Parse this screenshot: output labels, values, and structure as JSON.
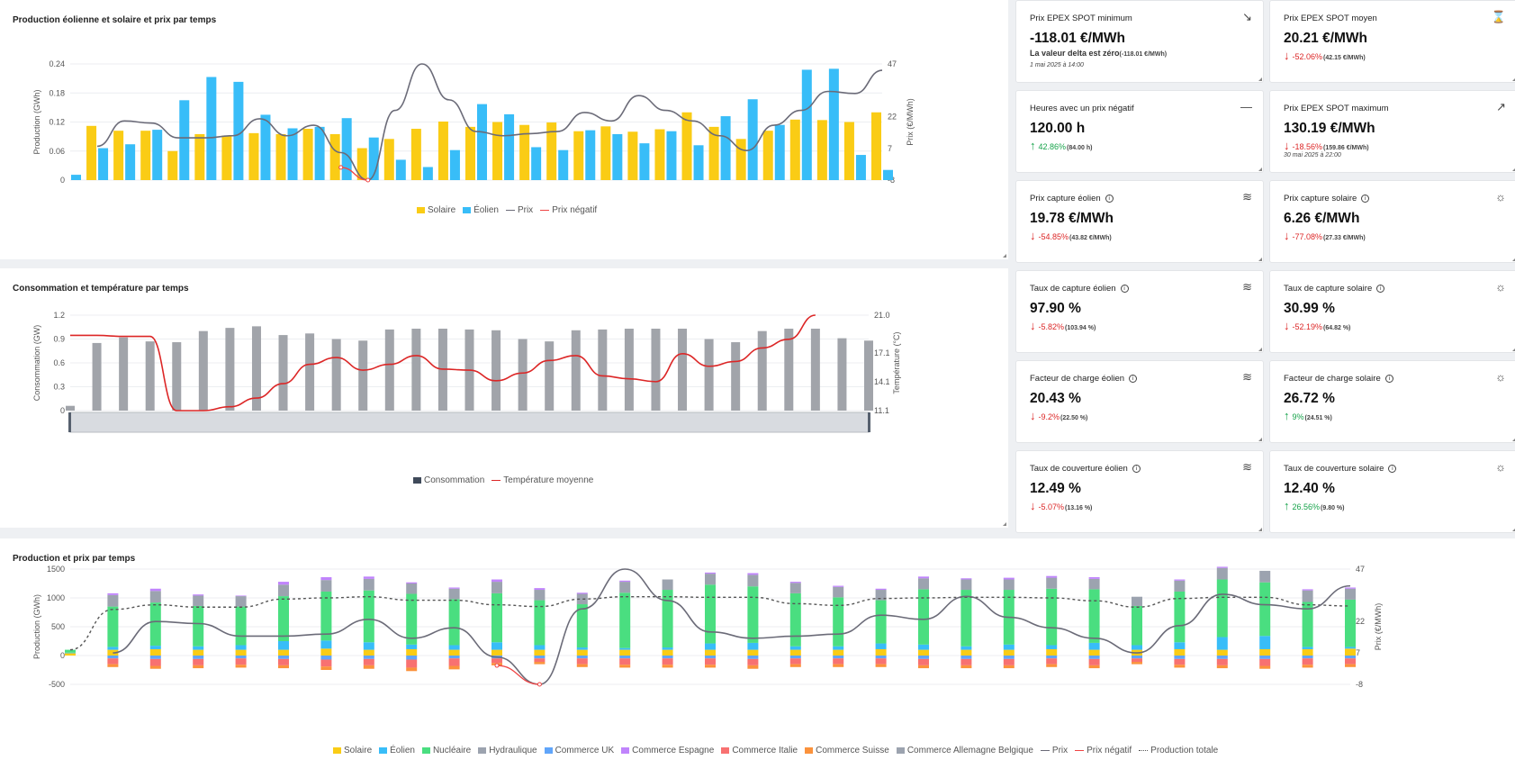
{
  "panels": {
    "wind_solar": {
      "title": "Production éolienne et solaire et prix par temps",
      "legend": [
        "Solaire",
        "Éolien",
        "Prix",
        "Prix négatif"
      ]
    },
    "consumption": {
      "title": "Consommation et température par temps",
      "legend": [
        "Consommation",
        "Température moyenne"
      ]
    },
    "production": {
      "title": "Production et prix par temps",
      "legend": [
        "Solaire",
        "Éolien",
        "Nucléaire",
        "Hydraulique",
        "Commerce UK",
        "Commerce Espagne",
        "Commerce Italie",
        "Commerce Suisse",
        "Commerce Allemagne Belgique",
        "Prix",
        "Prix négatif",
        "Production totale"
      ]
    }
  },
  "colors": {
    "solar": "#facc15",
    "wind": "#38bdf8",
    "nuclear": "#4ade80",
    "hydro": "#9ca3af",
    "uk": "#60a5fa",
    "spain": "#c084fc",
    "italy": "#f87171",
    "swiss": "#fb923c",
    "germany": "#9ca3af",
    "price": "#6b6b78",
    "negative": "#ef4444",
    "temperature": "#dc2626",
    "consumption_bar": "#a1a4aa"
  },
  "kpis": [
    {
      "title": "Prix EPEX SPOT minimum",
      "icon": "trend-down-right-icon",
      "glyph": "↘",
      "value": "-118.01 €/MWh",
      "sub": "La valeur delta est zéro",
      "sub_prev": "(-118.01 €/MWh)",
      "date": "1 mai 2025 à 14:00"
    },
    {
      "title": "Prix EPEX SPOT moyen",
      "icon": "hourglass-icon",
      "glyph": "⌛",
      "value": "20.21 €/MWh",
      "dir": "neg",
      "pct": "-52.06%",
      "prev": "(42.15 €/MWh)"
    },
    {
      "title": "Heures avec un prix négatif",
      "icon": "minus-icon",
      "glyph": "—",
      "value": "120.00 h",
      "dir": "pos",
      "pct": "42.86%",
      "prev": "(84.00 h)"
    },
    {
      "title": "Prix EPEX SPOT maximum",
      "icon": "trend-up-right-icon",
      "glyph": "↗",
      "value": "130.19 €/MWh",
      "dir": "neg",
      "pct": "-18.56%",
      "prev": "(159.86 €/MWh)",
      "date": "30 mai 2025 à 22:00"
    },
    {
      "title": "Prix capture éolien",
      "info": true,
      "icon": "wind-icon",
      "glyph": "≋",
      "value": "19.78 €/MWh",
      "dir": "neg",
      "pct": "-54.85%",
      "prev": "(43.82 €/MWh)"
    },
    {
      "title": "Prix capture solaire",
      "info": true,
      "icon": "sun-icon",
      "glyph": "☼",
      "value": "6.26 €/MWh",
      "dir": "neg",
      "pct": "-77.08%",
      "prev": "(27.33 €/MWh)"
    },
    {
      "title": "Taux de capture éolien",
      "info": true,
      "icon": "wind-icon",
      "glyph": "≋",
      "value": "97.90 %",
      "dir": "neg",
      "pct": "-5.82%",
      "prev": "(103.94 %)"
    },
    {
      "title": "Taux de capture solaire",
      "info": true,
      "icon": "sun-icon",
      "glyph": "☼",
      "value": "30.99 %",
      "dir": "neg",
      "pct": "-52.19%",
      "prev": "(64.82 %)"
    },
    {
      "title": "Facteur de charge éolien",
      "info": true,
      "icon": "wind-icon",
      "glyph": "≋",
      "value": "20.43 %",
      "dir": "neg",
      "pct": "-9.2%",
      "prev": "(22.50 %)"
    },
    {
      "title": "Facteur de charge solaire",
      "info": true,
      "icon": "sun-icon",
      "glyph": "☼",
      "value": "26.72 %",
      "dir": "pos",
      "pct": "9%",
      "prev": "(24.51 %)"
    },
    {
      "title": "Taux de couverture éolien",
      "info": true,
      "icon": "wind-icon",
      "glyph": "≋",
      "value": "12.49 %",
      "dir": "neg",
      "pct": "-5.07%",
      "prev": "(13.16 %)"
    },
    {
      "title": "Taux de couverture solaire",
      "info": true,
      "icon": "sun-icon",
      "glyph": "☼",
      "value": "12.40 %",
      "dir": "pos",
      "pct": "26.56%",
      "prev": "(9.80 %)"
    }
  ],
  "chart_data": [
    {
      "type": "bar",
      "title": "Production éolienne et solaire et prix par temps",
      "ylabel": "Production (GWh)",
      "y2label": "Prix (€/MWh)",
      "ylim": [
        0,
        0.24
      ],
      "yticks": [
        "0",
        "0.06",
        "0.12",
        "0.18",
        "0.24"
      ],
      "y2lim": [
        -8,
        47
      ],
      "y2ticks": [
        "-8",
        "7",
        "22",
        "47"
      ],
      "legend": "bottom-center",
      "series": [
        {
          "name": "Solaire",
          "values": [
            0,
            0.112,
            0.102,
            0.102,
            0.06,
            0.095,
            0.092,
            0.097,
            0.095,
            0.106,
            0.095,
            0.066,
            0.085,
            0.106,
            0.121,
            0.11,
            0.12,
            0.114,
            0.119,
            0.101,
            0.111,
            0.1,
            0.105,
            0.14,
            0.11,
            0.085,
            0.102,
            0.125,
            0.124,
            0.12,
            0.14
          ]
        },
        {
          "name": "Éolien",
          "values": [
            0.011,
            0.066,
            0.074,
            0.104,
            0.165,
            0.213,
            0.203,
            0.135,
            0.107,
            0.11,
            0.128,
            0.088,
            0.042,
            0.027,
            0.062,
            0.157,
            0.136,
            0.068,
            0.062,
            0.103,
            0.095,
            0.076,
            0.101,
            0.072,
            0.132,
            0.167,
            0.114,
            0.228,
            0.23,
            0.052,
            0.021
          ]
        },
        {
          "name": "Prix",
          "values": [
            null,
            8,
            20,
            19,
            12,
            12,
            13,
            21,
            13,
            18,
            5,
            -8,
            25,
            47,
            30,
            15,
            13,
            14,
            15,
            24,
            20,
            32,
            25,
            20,
            13,
            6,
            18,
            25,
            34,
            33,
            44
          ]
        },
        {
          "name": "Prix négatif",
          "values": [
            null,
            null,
            null,
            null,
            null,
            null,
            null,
            null,
            null,
            null,
            -2,
            -8,
            null,
            null,
            null,
            null,
            null,
            null,
            null,
            null,
            null,
            null,
            null,
            null,
            null,
            null,
            null,
            null,
            null,
            null,
            null
          ]
        }
      ]
    },
    {
      "type": "bar",
      "title": "Consommation et température par temps",
      "ylabel": "Consommation (GW)",
      "y2label": "Température (°C)",
      "ylim": [
        0,
        1.2
      ],
      "yticks": [
        "0",
        "0.3",
        "0.6",
        "0.9",
        "1.2"
      ],
      "y2lim": [
        11.1,
        21.0
      ],
      "y2ticks": [
        "11.1",
        "14.1",
        "17.1",
        "21.0"
      ],
      "legend": "bottom-center",
      "series": [
        {
          "name": "Consommation",
          "values": [
            0.06,
            0.85,
            0.92,
            0.87,
            0.86,
            1.0,
            1.04,
            1.06,
            0.95,
            0.97,
            0.9,
            0.88,
            1.02,
            1.03,
            1.03,
            1.02,
            1.01,
            0.9,
            0.87,
            1.01,
            1.02,
            1.03,
            1.03,
            1.03,
            0.9,
            0.86,
            1.0,
            1.03,
            1.03,
            0.91,
            0.88
          ]
        },
        {
          "name": "Température moyenne",
          "values": [
            18.9,
            18.9,
            18.8,
            18.8,
            11.1,
            11.1,
            11.5,
            12.4,
            13.9,
            15.9,
            16.6,
            15.3,
            15.9,
            16.8,
            15.4,
            15.3,
            14.2,
            15.0,
            16.3,
            16.8,
            14.7,
            14.4,
            14.1,
            17.0,
            15.7,
            16.2,
            17.6,
            18.5,
            21.0,
            null,
            null
          ]
        }
      ]
    },
    {
      "type": "bar",
      "title": "Production et prix par temps",
      "ylabel": "Production (GWh)",
      "y2label": "Prix (€/MWh)",
      "ylim": [
        -500,
        1500
      ],
      "yticks": [
        "-500",
        "0",
        "500",
        "1000",
        "1500"
      ],
      "y2lim": [
        -8,
        47
      ],
      "y2ticks": [
        "-8",
        "7",
        "22",
        "47"
      ],
      "legend": "bottom-center",
      "series": [
        {
          "name": "Nucléaire",
          "values": [
            50,
            700,
            750,
            700,
            670,
            780,
            850,
            900,
            880,
            800,
            850,
            780,
            750,
            960,
            1000,
            1020,
            980,
            920,
            850,
            750,
            960,
            980,
            950,
            980,
            930,
            680,
            880,
            1000,
            930,
            780,
            820
          ]
        },
        {
          "name": "Solaire",
          "values": [
            40,
            100,
            110,
            100,
            100,
            100,
            120,
            100,
            110,
            100,
            100,
            100,
            100,
            100,
            100,
            100,
            100,
            100,
            100,
            110,
            100,
            100,
            100,
            110,
            100,
            100,
            110,
            100,
            110,
            110,
            120
          ]
        },
        {
          "name": "Éolien",
          "values": [
            10,
            50,
            60,
            60,
            80,
            150,
            140,
            130,
            80,
            80,
            130,
            80,
            40,
            30,
            40,
            110,
            120,
            60,
            60,
            100,
            90,
            60,
            90,
            70,
            120,
            80,
            120,
            220,
            230,
            40,
            30
          ]
        },
        {
          "name": "Hydraulique",
          "values": [
            0,
            200,
            200,
            180,
            180,
            200,
            200,
            200,
            180,
            180,
            200,
            180,
            180,
            190,
            180,
            190,
            200,
            180,
            180,
            180,
            190,
            180,
            180,
            190,
            180,
            160,
            190,
            200,
            200,
            200,
            190
          ]
        },
        {
          "name": "Commerce Espagne",
          "values": [
            0,
            30,
            40,
            20,
            10,
            50,
            50,
            40,
            20,
            20,
            40,
            30,
            20,
            20,
            0,
            20,
            30,
            20,
            20,
            20,
            30,
            20,
            30,
            30,
            30,
            0,
            20,
            20,
            0,
            20,
            20
          ]
        },
        {
          "name": "Commerce UK",
          "values": [
            0,
            -50,
            -60,
            -60,
            -50,
            -60,
            -70,
            -60,
            -70,
            -50,
            -50,
            -50,
            -50,
            -50,
            -50,
            -50,
            -60,
            -50,
            -50,
            -50,
            -60,
            -60,
            -60,
            -50,
            -60,
            -50,
            -60,
            -60,
            -60,
            -50,
            -50
          ]
        },
        {
          "name": "Commerce Italie",
          "values": [
            0,
            -100,
            -120,
            -110,
            -110,
            -110,
            -120,
            -110,
            -140,
            -130,
            -80,
            -60,
            -100,
            -110,
            -110,
            -110,
            -110,
            -100,
            -100,
            -100,
            -110,
            -110,
            -110,
            -100,
            -110,
            -60,
            -100,
            -110,
            -120,
            -110,
            -100
          ]
        },
        {
          "name": "Commerce Suisse",
          "values": [
            0,
            -50,
            -50,
            -50,
            -50,
            -50,
            -60,
            -60,
            -60,
            -60,
            -40,
            -40,
            -50,
            -50,
            -50,
            -50,
            -60,
            -50,
            -50,
            -50,
            -50,
            -50,
            -50,
            -50,
            -50,
            -40,
            -50,
            -50,
            -50,
            -50,
            -50
          ]
        },
        {
          "name": "Prix",
          "values": [
            null,
            7,
            22,
            21,
            15,
            15,
            16,
            23,
            14,
            19,
            5,
            -8,
            28,
            47,
            32,
            17,
            14,
            15,
            16,
            25,
            23,
            34,
            24,
            19,
            14,
            7,
            20,
            35,
            30,
            28,
            39
          ]
        },
        {
          "name": "Prix négatif",
          "values": [
            null,
            null,
            null,
            null,
            null,
            null,
            null,
            null,
            null,
            null,
            1,
            -8,
            null,
            null,
            null,
            null,
            null,
            null,
            null,
            null,
            null,
            null,
            null,
            null,
            null,
            null,
            null,
            null,
            null,
            null,
            null
          ]
        },
        {
          "name": "Production totale",
          "values": [
            100,
            800,
            880,
            840,
            840,
            980,
            1000,
            1020,
            960,
            960,
            880,
            850,
            980,
            1020,
            1020,
            1010,
            1010,
            900,
            870,
            990,
            1000,
            1010,
            1010,
            1000,
            950,
            840,
            990,
            1010,
            1010,
            880,
            860
          ]
        }
      ]
    }
  ]
}
